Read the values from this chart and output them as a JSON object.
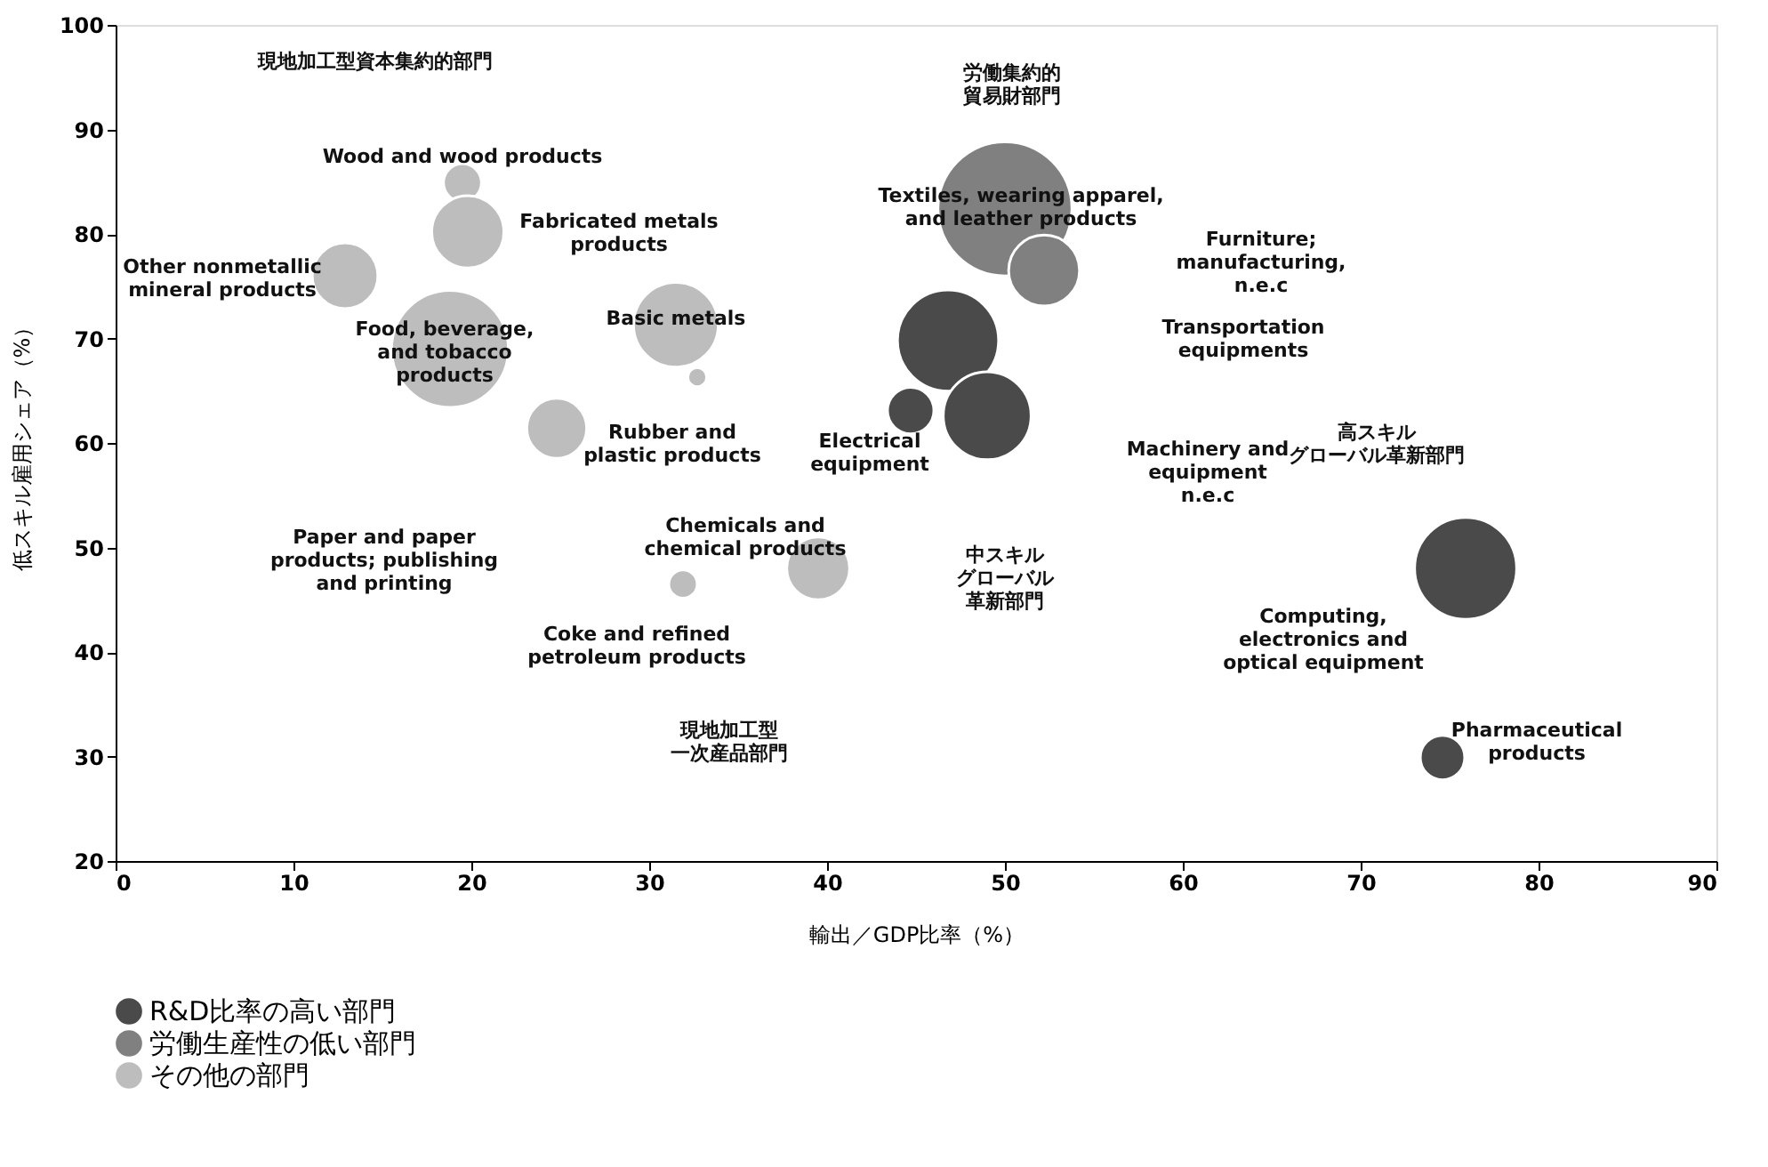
{
  "chart_data": {
    "type": "bubble",
    "xlabel": "輸出／GDP比率（%）",
    "ylabel": "低スキル雇用シェア（%）",
    "xlim": [
      0,
      90
    ],
    "xticks": [
      0,
      10,
      20,
      30,
      40,
      50,
      60,
      70,
      80,
      90
    ],
    "ylim": [
      20,
      100
    ],
    "yticks": [
      20,
      30,
      40,
      50,
      60,
      70,
      80,
      90,
      100
    ],
    "grid": false,
    "legend": "bottom",
    "series": [
      {
        "name": "R&D比率の高い部門",
        "color": "#4a4a4a",
        "x": [
          46.8,
          49.0,
          44.7,
          75.9,
          74.6
        ],
        "values": [
          69.8,
          62.6,
          63.1,
          48.0,
          29.9
        ],
        "sizes": [
          0.57,
          0.43,
          0.12,
          0.58,
          0.11
        ]
      },
      {
        "name": "労働生産性の低い部門",
        "color": "#808080",
        "x": [
          50.0,
          52.2
        ],
        "values": [
          82.4,
          76.5
        ],
        "sizes": [
          1,
          0.28
        ]
      },
      {
        "name": "その他の部門",
        "color": "#bdbdbd",
        "x": [
          19.5,
          19.8,
          12.9,
          18.8,
          31.5,
          32.7,
          24.8,
          31.9,
          39.5
        ],
        "values": [
          84.9,
          80.2,
          76.0,
          69.0,
          71.3,
          66.3,
          61.4,
          46.5,
          48.0
        ],
        "sizes": [
          0.08,
          0.29,
          0.24,
          0.76,
          0.4,
          0.02,
          0.2,
          0.045,
          0.22
        ]
      }
    ],
    "annotations": [
      "現地加工型資本集約的部門",
      "労働集約的貿易財部門",
      "Wood and wood products",
      "Fabricated metals\nproducts",
      "Other nonmetallic\nmineral products",
      "Food, beverage,\nand tobacco\nproducts",
      "Basic metals",
      "Rubber and\nplastic products",
      "Paper and paper\nproducts; publishing\nand printing",
      "Chemicals and\nchemical products",
      "Coke and refined\npetroleum products",
      "現地加工型一次産品部門",
      "Textiles, wearing apparel,\nand leather products",
      "Furniture;\nmanufacturing,\nn.e.c",
      "Transportation\nequipments",
      "Electrical\nequipment",
      "Machinery and\nequipment\nn.e.c",
      "中スキルグローバル革新部門",
      "高スキルグローバル革新部門",
      "Computing,\nelectronics and\noptical equipment",
      "Pharmaceutical\nproducts"
    ]
  }
}
